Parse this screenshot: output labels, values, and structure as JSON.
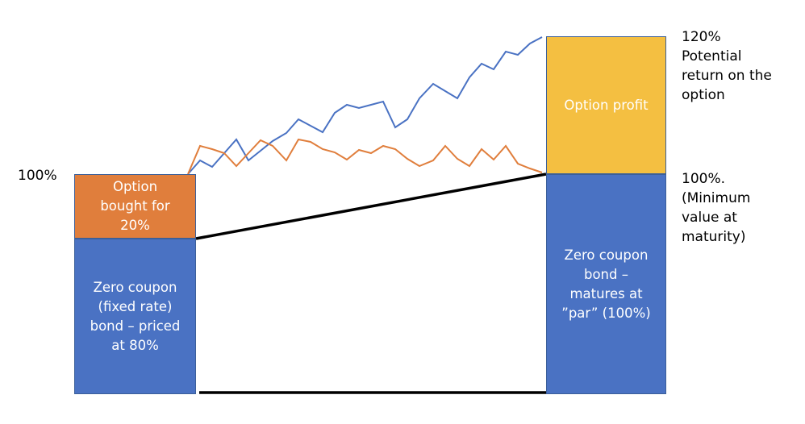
{
  "left": {
    "option_box": "Option\nbought for\n20%",
    "bond_box": "Zero coupon\n(fixed rate)\nbond – priced\nat 80%",
    "level_label": "100%"
  },
  "right": {
    "profit_box": "Option profit",
    "bond_box": "Zero coupon\nbond –\nmatures  at\n”par” (100%)",
    "top_label": "120%\nPotential\nreturn on the\noption",
    "mid_label": "100%.\n(Minimum\nvalue at\nmaturity)"
  },
  "colors": {
    "option": "#e07e3c",
    "bond": "#4a72c3",
    "profit": "#f4bf41",
    "path_high": "#4a72c3",
    "path_low": "#e07e3c",
    "connector": "#000000"
  }
}
